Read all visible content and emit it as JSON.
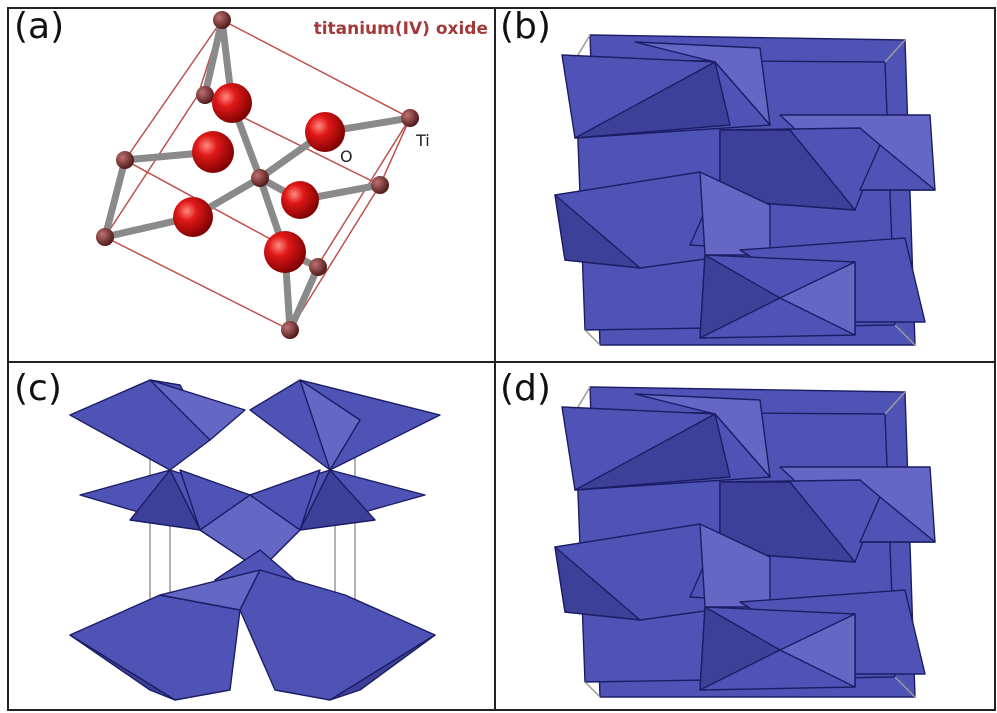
{
  "panels": [
    {
      "label": "(a)",
      "title": "titanium(IV) oxide",
      "atoms": [
        "O",
        "Ti"
      ]
    },
    {
      "label": "(b)"
    },
    {
      "label": "(c)"
    },
    {
      "label": "(d)"
    }
  ]
}
